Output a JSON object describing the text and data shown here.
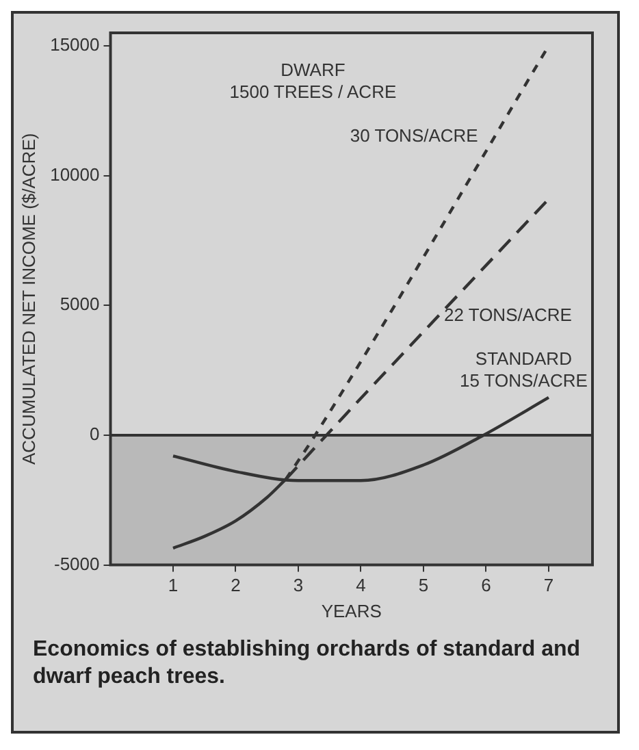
{
  "chart_data": {
    "type": "line",
    "title": "Economics of establishing orchards of standard and dwarf peach trees.",
    "xlabel": "YEARS",
    "ylabel": "ACCUMULATED NET INCOME ($/ACRE)",
    "xlim": [
      0,
      7.7
    ],
    "xticks": [
      1,
      2,
      3,
      4,
      5,
      6,
      7
    ],
    "ylim": [
      -5000,
      15500
    ],
    "yticks": [
      -5000,
      0,
      5000,
      10000,
      15000
    ],
    "grid": false,
    "legend": false,
    "marker": "none",
    "annotations": [
      "DWARF 1500 TREES / ACRE"
    ],
    "bands": [
      {
        "axis": "y",
        "from": -5000,
        "to": 0,
        "color": "#b9b9b9"
      }
    ],
    "ref_lines": [
      {
        "axis": "y",
        "value": 0,
        "color": "#333333"
      }
    ],
    "series": [
      {
        "color": "#333333",
        "line_style": "solid",
        "x": [
          1,
          1.5,
          2,
          2.5,
          2.8
        ],
        "values": [
          -4350,
          -3900,
          -3300,
          -2400,
          -1700
        ]
      },
      {
        "name": "30 TONS/ACRE",
        "color": "#333333",
        "line_style": "dotted",
        "x": [
          2.8,
          3.27,
          7
        ],
        "values": [
          -1700,
          0,
          15000
        ]
      },
      {
        "name": "22 TONS/ACRE",
        "color": "#333333",
        "line_style": "dashed",
        "x": [
          2.8,
          3.45,
          7
        ],
        "values": [
          -1700,
          0,
          9100
        ]
      },
      {
        "name": "STANDARD 15 TONS/ACRE",
        "color": "#333333",
        "line_style": "solid",
        "x": [
          1,
          2,
          3,
          4,
          5,
          5.96,
          7
        ],
        "values": [
          -800,
          -1400,
          -1750,
          -1750,
          -1150,
          0,
          1450
        ]
      }
    ]
  }
}
